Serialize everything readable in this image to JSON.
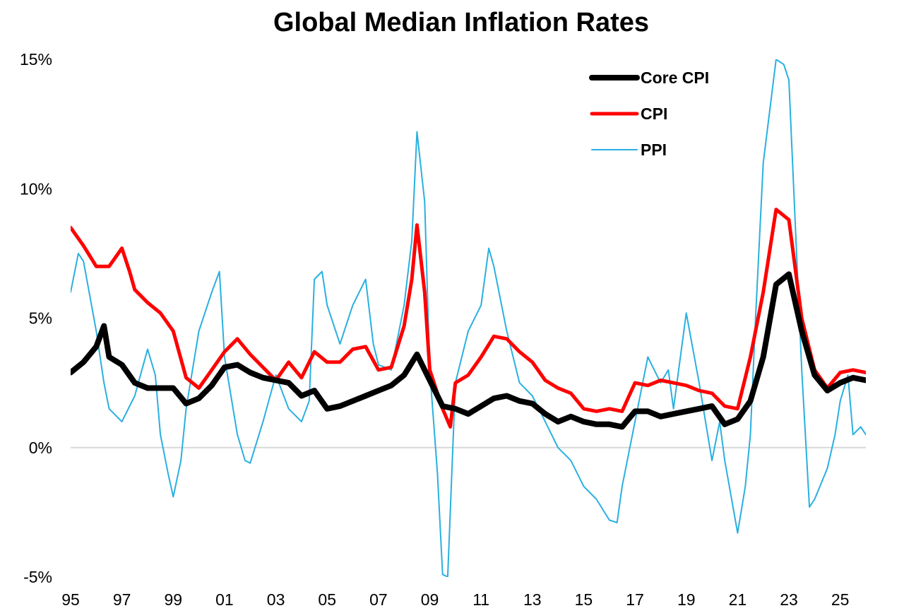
{
  "chart_data": {
    "type": "line",
    "title": "Global Median Inflation Rates",
    "xlabel": "",
    "ylabel": "",
    "x_tick_labels": [
      "95",
      "97",
      "99",
      "01",
      "03",
      "05",
      "07",
      "09",
      "11",
      "13",
      "15",
      "17",
      "19",
      "21",
      "23",
      "25"
    ],
    "x_tick_years": [
      1995,
      1997,
      1999,
      2001,
      2003,
      2005,
      2007,
      2009,
      2011,
      2013,
      2015,
      2017,
      2019,
      2021,
      2023,
      2025
    ],
    "xlim": [
      1995,
      2026
    ],
    "y_tick_labels": [
      "15%",
      "10%",
      "5%",
      "0%",
      "-5%"
    ],
    "y_tick_values": [
      15,
      10,
      5,
      0,
      -5
    ],
    "ylim": [
      -5,
      15
    ],
    "grid": false,
    "zero_line": true,
    "legend_position": "top-right",
    "series": [
      {
        "name": "Core CPI",
        "color": "#000000",
        "x": [
          1995.0,
          1995.5,
          1996.0,
          1996.3,
          1996.5,
          1997.0,
          1997.5,
          1998.0,
          1999.0,
          1999.5,
          2000.0,
          2000.5,
          2001.0,
          2001.5,
          2002.0,
          2002.5,
          2003.0,
          2003.5,
          2004.0,
          2004.5,
          2005.0,
          2005.5,
          2006.0,
          2006.5,
          2007.0,
          2007.5,
          2008.0,
          2008.5,
          2009.0,
          2009.5,
          2010.0,
          2010.5,
          2011.0,
          2011.5,
          2012.0,
          2012.5,
          2013.0,
          2013.5,
          2014.0,
          2014.5,
          2015.0,
          2015.5,
          2016.0,
          2016.5,
          2017.0,
          2017.5,
          2018.0,
          2018.5,
          2019.0,
          2019.5,
          2020.0,
          2020.5,
          2021.0,
          2021.5,
          2022.0,
          2022.5,
          2023.0,
          2023.5,
          2024.0,
          2024.5,
          2025.0,
          2025.5,
          2026.0
        ],
        "values": [
          2.9,
          3.3,
          3.9,
          4.7,
          3.5,
          3.2,
          2.5,
          2.3,
          2.3,
          1.7,
          1.9,
          2.4,
          3.1,
          3.2,
          2.9,
          2.7,
          2.6,
          2.5,
          2.0,
          2.2,
          1.5,
          1.6,
          1.8,
          2.0,
          2.2,
          2.4,
          2.8,
          3.6,
          2.6,
          1.6,
          1.5,
          1.3,
          1.6,
          1.9,
          2.0,
          1.8,
          1.7,
          1.3,
          1.0,
          1.2,
          1.0,
          0.9,
          0.9,
          0.8,
          1.4,
          1.4,
          1.2,
          1.3,
          1.4,
          1.5,
          1.6,
          0.9,
          1.1,
          1.8,
          3.5,
          6.3,
          6.7,
          4.5,
          2.8,
          2.2,
          2.5,
          2.7,
          2.6
        ]
      },
      {
        "name": "CPI",
        "color": "#ff0000",
        "x": [
          1995.0,
          1995.5,
          1996.0,
          1996.5,
          1997.0,
          1997.3,
          1997.5,
          1998.0,
          1998.5,
          1999.0,
          1999.5,
          2000.0,
          2000.5,
          2001.0,
          2001.5,
          2002.0,
          2002.5,
          2003.0,
          2003.5,
          2004.0,
          2004.5,
          2005.0,
          2005.5,
          2006.0,
          2006.5,
          2007.0,
          2007.5,
          2008.0,
          2008.3,
          2008.5,
          2008.8,
          2009.0,
          2009.5,
          2009.8,
          2010.0,
          2010.5,
          2011.0,
          2011.5,
          2012.0,
          2012.5,
          2013.0,
          2013.5,
          2014.0,
          2014.5,
          2015.0,
          2015.5,
          2016.0,
          2016.5,
          2017.0,
          2017.5,
          2018.0,
          2018.5,
          2019.0,
          2019.5,
          2020.0,
          2020.5,
          2021.0,
          2021.5,
          2022.0,
          2022.5,
          2023.0,
          2023.5,
          2024.0,
          2024.5,
          2025.0,
          2025.5,
          2026.0
        ],
        "values": [
          8.5,
          7.8,
          7.0,
          7.0,
          7.7,
          6.8,
          6.1,
          5.6,
          5.2,
          4.5,
          2.7,
          2.3,
          3.0,
          3.7,
          4.2,
          3.6,
          3.1,
          2.6,
          3.3,
          2.7,
          3.7,
          3.3,
          3.3,
          3.8,
          3.9,
          3.0,
          3.1,
          4.7,
          6.5,
          8.6,
          6.0,
          3.0,
          1.5,
          0.8,
          2.5,
          2.8,
          3.5,
          4.3,
          4.2,
          3.7,
          3.3,
          2.6,
          2.3,
          2.1,
          1.5,
          1.4,
          1.5,
          1.4,
          2.5,
          2.4,
          2.6,
          2.5,
          2.4,
          2.2,
          2.1,
          1.6,
          1.5,
          3.5,
          6.0,
          9.2,
          8.8,
          5.0,
          3.0,
          2.3,
          2.9,
          3.0,
          2.9
        ]
      },
      {
        "name": "PPI",
        "color": "#29b0e0",
        "x": [
          1995.0,
          1995.3,
          1995.5,
          1996.0,
          1996.3,
          1996.5,
          1997.0,
          1997.5,
          1998.0,
          1998.3,
          1998.5,
          1998.8,
          1999.0,
          1999.3,
          1999.5,
          2000.0,
          2000.5,
          2000.8,
          2001.0,
          2001.5,
          2001.8,
          2002.0,
          2002.5,
          2003.0,
          2003.5,
          2004.0,
          2004.3,
          2004.5,
          2004.8,
          2005.0,
          2005.5,
          2006.0,
          2006.5,
          2006.8,
          2007.0,
          2007.5,
          2008.0,
          2008.3,
          2008.5,
          2008.8,
          2009.0,
          2009.3,
          2009.5,
          2009.7,
          2010.0,
          2010.5,
          2011.0,
          2011.3,
          2011.5,
          2012.0,
          2012.5,
          2013.0,
          2013.5,
          2014.0,
          2014.5,
          2015.0,
          2015.5,
          2016.0,
          2016.3,
          2016.5,
          2017.0,
          2017.5,
          2018.0,
          2018.3,
          2018.5,
          2019.0,
          2019.5,
          2020.0,
          2020.3,
          2020.5,
          2021.0,
          2021.3,
          2021.5,
          2021.7,
          2022.0,
          2022.5,
          2022.8,
          2023.0,
          2023.5,
          2023.8,
          2024.0,
          2024.5,
          2024.8,
          2025.0,
          2025.3,
          2025.5,
          2025.8,
          2026.0
        ],
        "values": [
          6.0,
          7.5,
          7.2,
          4.5,
          2.5,
          1.5,
          1.0,
          2.0,
          3.8,
          2.8,
          0.5,
          -1.0,
          -1.9,
          -0.5,
          1.5,
          4.5,
          6.0,
          6.8,
          3.5,
          0.5,
          -0.5,
          -0.6,
          1.0,
          2.8,
          1.5,
          1.0,
          1.8,
          6.5,
          6.8,
          5.5,
          4.0,
          5.5,
          6.5,
          4.0,
          3.2,
          3.0,
          5.5,
          8.0,
          12.2,
          9.5,
          3.0,
          -1.0,
          -4.9,
          -5.0,
          2.5,
          4.5,
          5.5,
          7.7,
          7.0,
          4.5,
          2.5,
          2.0,
          1.0,
          0.0,
          -0.5,
          -1.5,
          -2.0,
          -2.8,
          -2.9,
          -1.5,
          1.0,
          3.5,
          2.5,
          3.0,
          1.5,
          5.2,
          2.5,
          -0.5,
          1.0,
          -0.5,
          -3.3,
          -1.5,
          0.5,
          5.0,
          11.0,
          15.0,
          14.8,
          14.2,
          3.0,
          -2.3,
          -2.0,
          -0.8,
          0.5,
          1.8,
          2.8,
          0.5,
          0.8,
          0.5
        ]
      }
    ]
  }
}
